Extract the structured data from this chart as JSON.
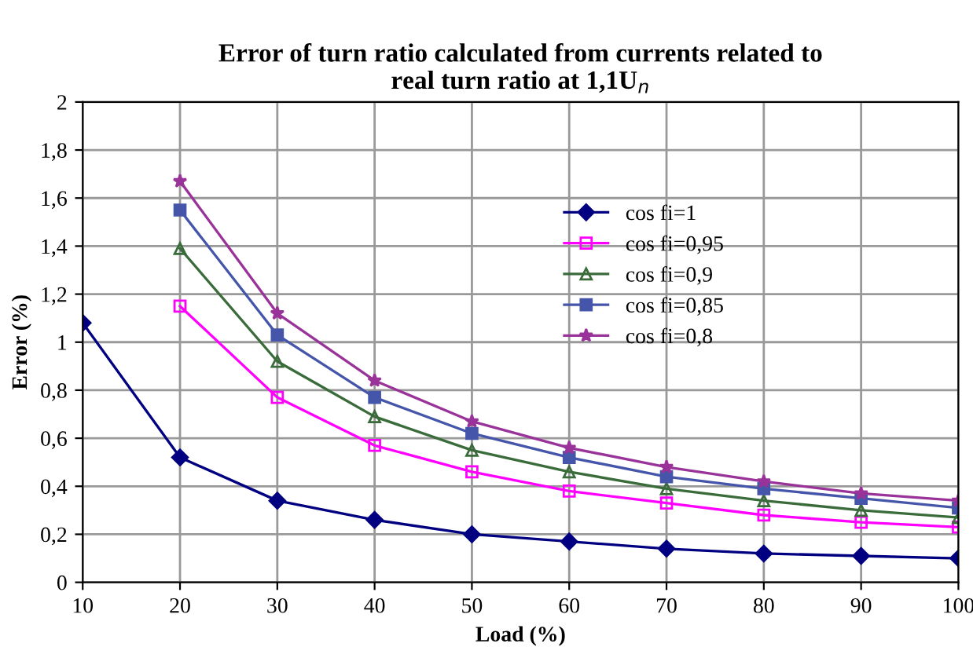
{
  "chart_data": {
    "type": "line",
    "title": "Error of turn ratio calculated from currents related to\nreal turn ratio at 1,1U$_{n}$",
    "xlabel": "Load (%)",
    "ylabel": "Error (%)",
    "x": [
      10,
      20,
      30,
      40,
      50,
      60,
      70,
      80,
      90,
      100
    ],
    "series": [
      {
        "name": "cos fi=1",
        "color": "#000080",
        "marker": "diamond",
        "values": [
          1.08,
          0.52,
          0.34,
          0.26,
          0.2,
          0.17,
          0.14,
          0.12,
          0.11,
          0.1
        ]
      },
      {
        "name": "cos fi=0,95",
        "color": "#ff00ff",
        "marker": "square",
        "values": [
          null,
          1.15,
          0.77,
          0.57,
          0.46,
          0.38,
          0.33,
          0.28,
          0.25,
          0.23
        ]
      },
      {
        "name": "cos fi=0,9",
        "color": "#3a6b3a",
        "marker": "triangle",
        "values": [
          null,
          1.39,
          0.92,
          0.69,
          0.55,
          0.46,
          0.39,
          0.34,
          0.3,
          0.27
        ]
      },
      {
        "name": "cos fi=0,85",
        "color": "#4455aa",
        "marker": "square",
        "values": [
          null,
          1.55,
          1.03,
          0.77,
          0.62,
          0.52,
          0.44,
          0.39,
          0.35,
          0.31
        ]
      },
      {
        "name": "cos fi=0,8",
        "color": "#993399",
        "marker": "star",
        "values": [
          null,
          1.67,
          1.12,
          0.84,
          0.67,
          0.56,
          0.48,
          0.42,
          0.37,
          0.34
        ]
      }
    ],
    "xlim": [
      10,
      100
    ],
    "xticks": [
      10,
      20,
      30,
      40,
      50,
      60,
      70,
      80,
      90,
      100
    ],
    "ylim": [
      0,
      2
    ],
    "yticks": [
      0,
      {
        "value": 0.2,
        "label": "0,2"
      },
      {
        "value": 0.4,
        "label": "0,4"
      },
      {
        "value": 0.6,
        "label": "0,6"
      },
      {
        "value": 0.8,
        "label": "0,8"
      },
      1,
      {
        "value": 1.2,
        "label": "1,2"
      },
      {
        "value": 1.4,
        "label": "1,4"
      },
      {
        "value": 1.6,
        "label": "1,6"
      },
      {
        "value": 1.8,
        "label": "1,8"
      },
      2
    ],
    "grid": true,
    "legend": "top right",
    "line_style": "solid"
  }
}
